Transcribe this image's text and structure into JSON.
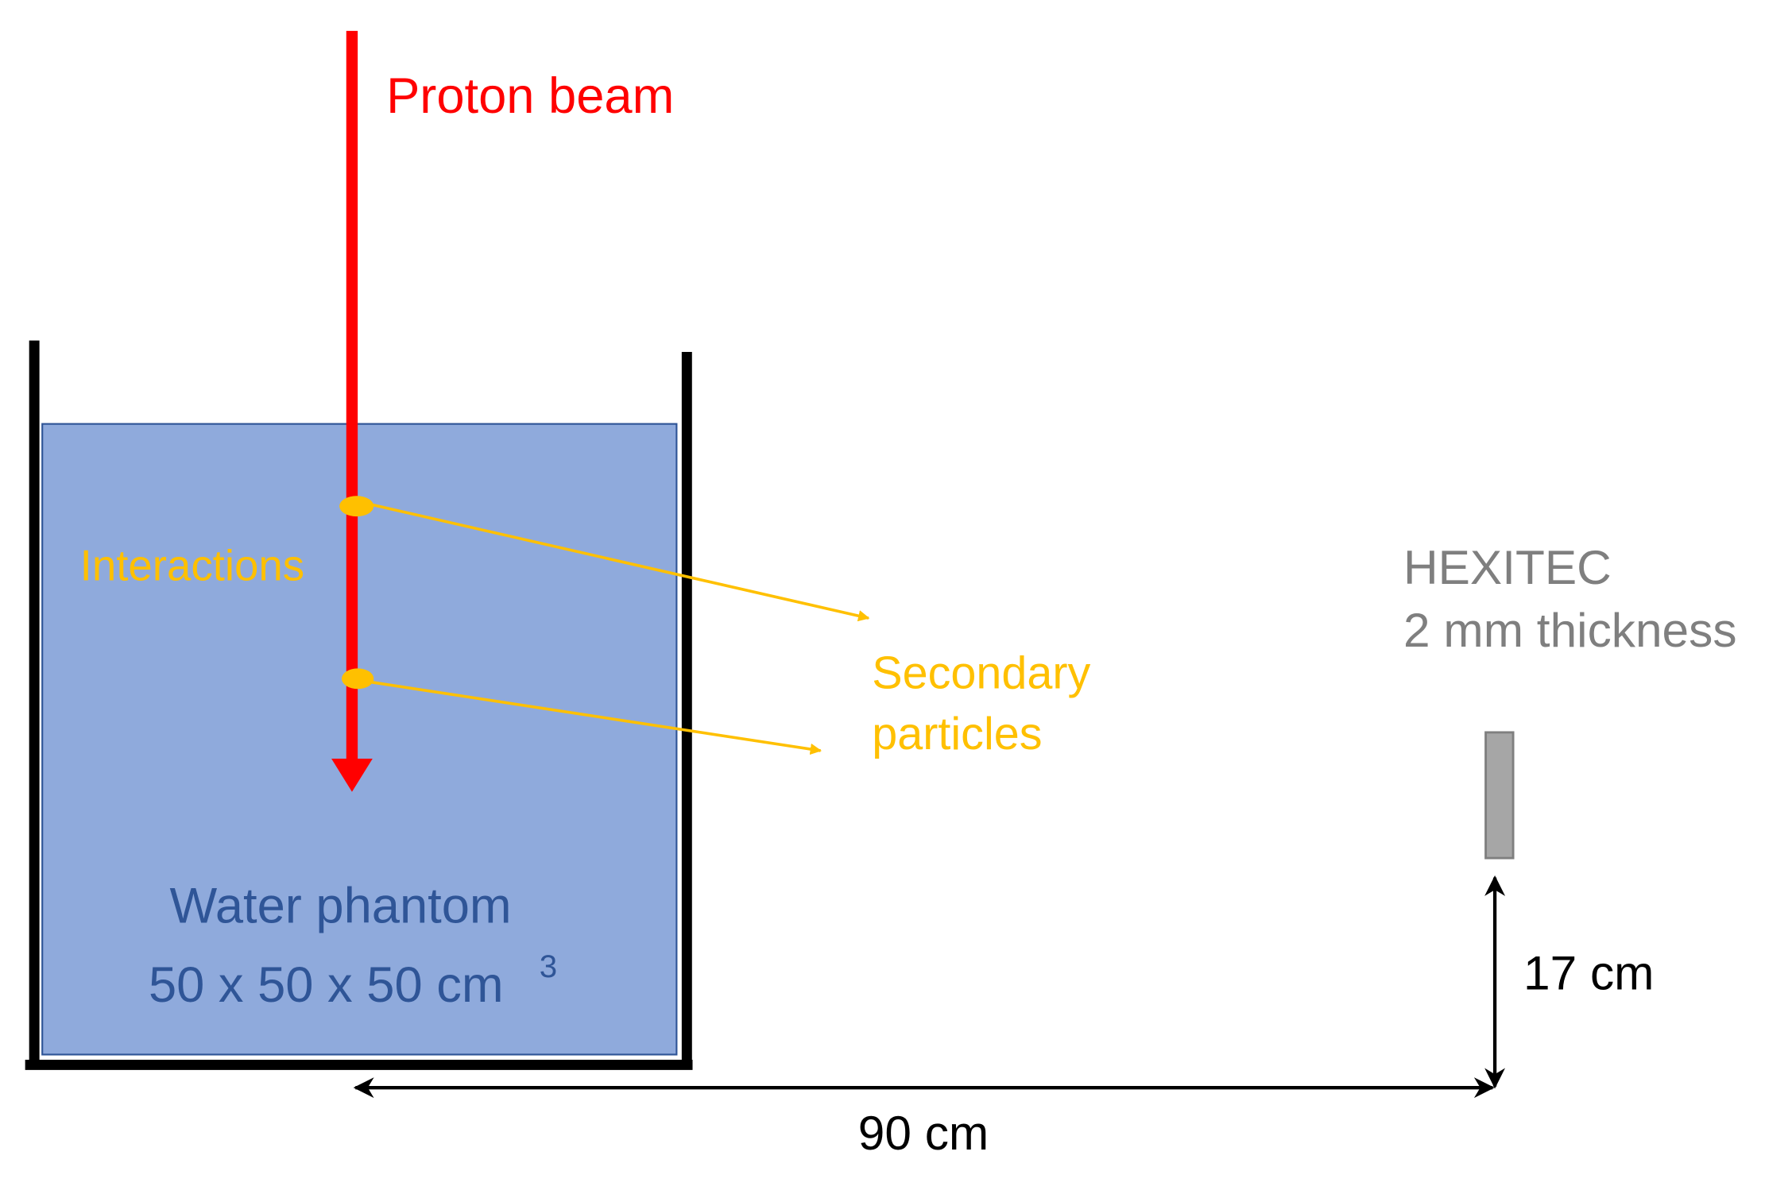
{
  "beam": {
    "label": "Proton beam"
  },
  "interactions": {
    "label": "Interactions"
  },
  "secondary": {
    "lines": [
      "Secondary",
      "particles"
    ]
  },
  "detector": {
    "name": "HEXITEC",
    "detail": "2 mm thickness"
  },
  "phantom": {
    "name": "Water phantom",
    "size": "50 x 50 x 50 cm",
    "size_exponent": "3"
  },
  "dimensions": {
    "height": "17 cm",
    "distance": "90 cm"
  }
}
